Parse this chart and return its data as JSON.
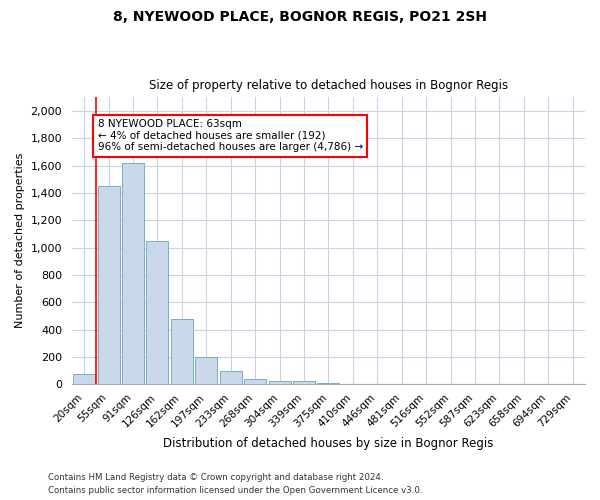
{
  "title1": "8, NYEWOOD PLACE, BOGNOR REGIS, PO21 2SH",
  "title2": "Size of property relative to detached houses in Bognor Regis",
  "xlabel": "Distribution of detached houses by size in Bognor Regis",
  "ylabel": "Number of detached properties",
  "bar_labels": [
    "20sqm",
    "55sqm",
    "91sqm",
    "126sqm",
    "162sqm",
    "197sqm",
    "233sqm",
    "268sqm",
    "304sqm",
    "339sqm",
    "375sqm",
    "410sqm",
    "446sqm",
    "481sqm",
    "516sqm",
    "552sqm",
    "587sqm",
    "623sqm",
    "658sqm",
    "694sqm",
    "729sqm"
  ],
  "bar_values": [
    75,
    1450,
    1620,
    1050,
    480,
    200,
    100,
    40,
    25,
    20,
    10,
    0,
    0,
    0,
    0,
    0,
    0,
    0,
    0,
    0,
    0
  ],
  "bar_color": "#c9d9ea",
  "bar_edgecolor": "#7aacc8",
  "annotation_box_text": "8 NYEWOOD PLACE: 63sqm\n← 4% of detached houses are smaller (192)\n96% of semi-detached houses are larger (4,786) →",
  "redline_x": 0.5,
  "ylim": [
    0,
    2100
  ],
  "yticks": [
    0,
    200,
    400,
    600,
    800,
    1000,
    1200,
    1400,
    1600,
    1800,
    2000
  ],
  "footnote1": "Contains HM Land Registry data © Crown copyright and database right 2024.",
  "footnote2": "Contains public sector information licensed under the Open Government Licence v3.0.",
  "background_color": "#ffffff",
  "grid_color": "#c8d4e4"
}
